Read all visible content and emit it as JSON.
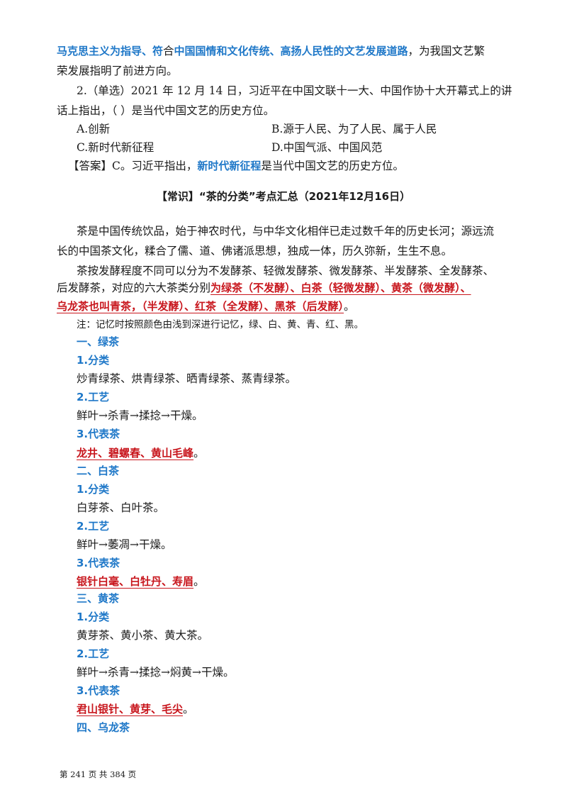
{
  "top": {
    "p1_a": "马克思主义为指导、符",
    "p1_b": "合",
    "p1_c": "中国国情和文化传统、高扬人民性的文艺发展道路",
    "p1_d": "，为我国文艺繁",
    "p1_e": "荣发展指明了前进方向。",
    "q2_line1": "2.（单选）2021 年 12 月 14 日，习近平在中国文联十一大、中国作协十大开幕式上的讲",
    "q2_line2": "话上指出，（     ）是当代中国文艺的历史方位。",
    "opt_a": "A.创新",
    "opt_b": "B.源于人民、为了人民、属于人民",
    "opt_c": "C.新时代新征程",
    "opt_d": "D.中国气派、中国风范",
    "ans_a": "【答案】C。习近平指出，",
    "ans_b": "新时代新征程",
    "ans_c": "是当代中国文艺的历史方位。"
  },
  "section": {
    "title": "【常识】“茶的分类”考点汇总（2021年12月16日）",
    "intro1": "茶是中国传统饮品，始于神农时代，与中华文化相伴已走过数千年的历史长河；源远流",
    "intro2": "长的中国茶文化，糅合了儒、道、佛诸派思想，独成一体，历久弥新，生生不息。",
    "intro3": "茶按发酵程度不同可以分为不发酵茶、轻微发酵茶、微发酵茶、半发酵茶、全发酵茶、",
    "intro4_a": "后发酵茶，对应的六大茶类分别",
    "intro4_b": "为绿茶（不发酵）、白茶（轻微发酵）、黄茶（微发酵）、",
    "intro5_a": "乌龙茶也叫青茶，（半发酵）、红茶（全发酵）、黑茶（后发酵）",
    "intro5_b": "。",
    "note": "注：记忆时按照颜色由浅到深进行记忆，绿、白、黄、青、红、黑。"
  },
  "teas": [
    {
      "heading": "一、绿茶",
      "cls_h": "1.分类",
      "cls": "炒青绿茶、烘青绿茶、晒青绿茶、蒸青绿茶。",
      "proc_h": "2.工艺",
      "proc": "鲜叶→杀青→揉捻→干燥。",
      "rep_h": "3.代表茶",
      "rep": "龙井、碧螺春、黄山毛峰",
      "rep_end": "。"
    },
    {
      "heading": "二、白茶",
      "cls_h": "1.分类",
      "cls": "白芽茶、白叶茶。",
      "proc_h": "2.工艺",
      "proc": "鲜叶→萎凋→干燥。",
      "rep_h": "3.代表茶",
      "rep": "银针白毫、白牡丹、寿眉",
      "rep_end": "。"
    },
    {
      "heading": "三、黄茶",
      "cls_h": "1.分类",
      "cls": "黄芽茶、黄小茶、黄大茶。",
      "proc_h": "2.工艺",
      "proc": "鲜叶→杀青→揉捻→焖黄→干燥。",
      "rep_h": "3.代表茶",
      "rep": "君山银针、黄芽、毛尖",
      "rep_end": "。"
    },
    {
      "heading": "四、乌龙茶"
    }
  ],
  "footer": "第 241 页 共 384 页"
}
